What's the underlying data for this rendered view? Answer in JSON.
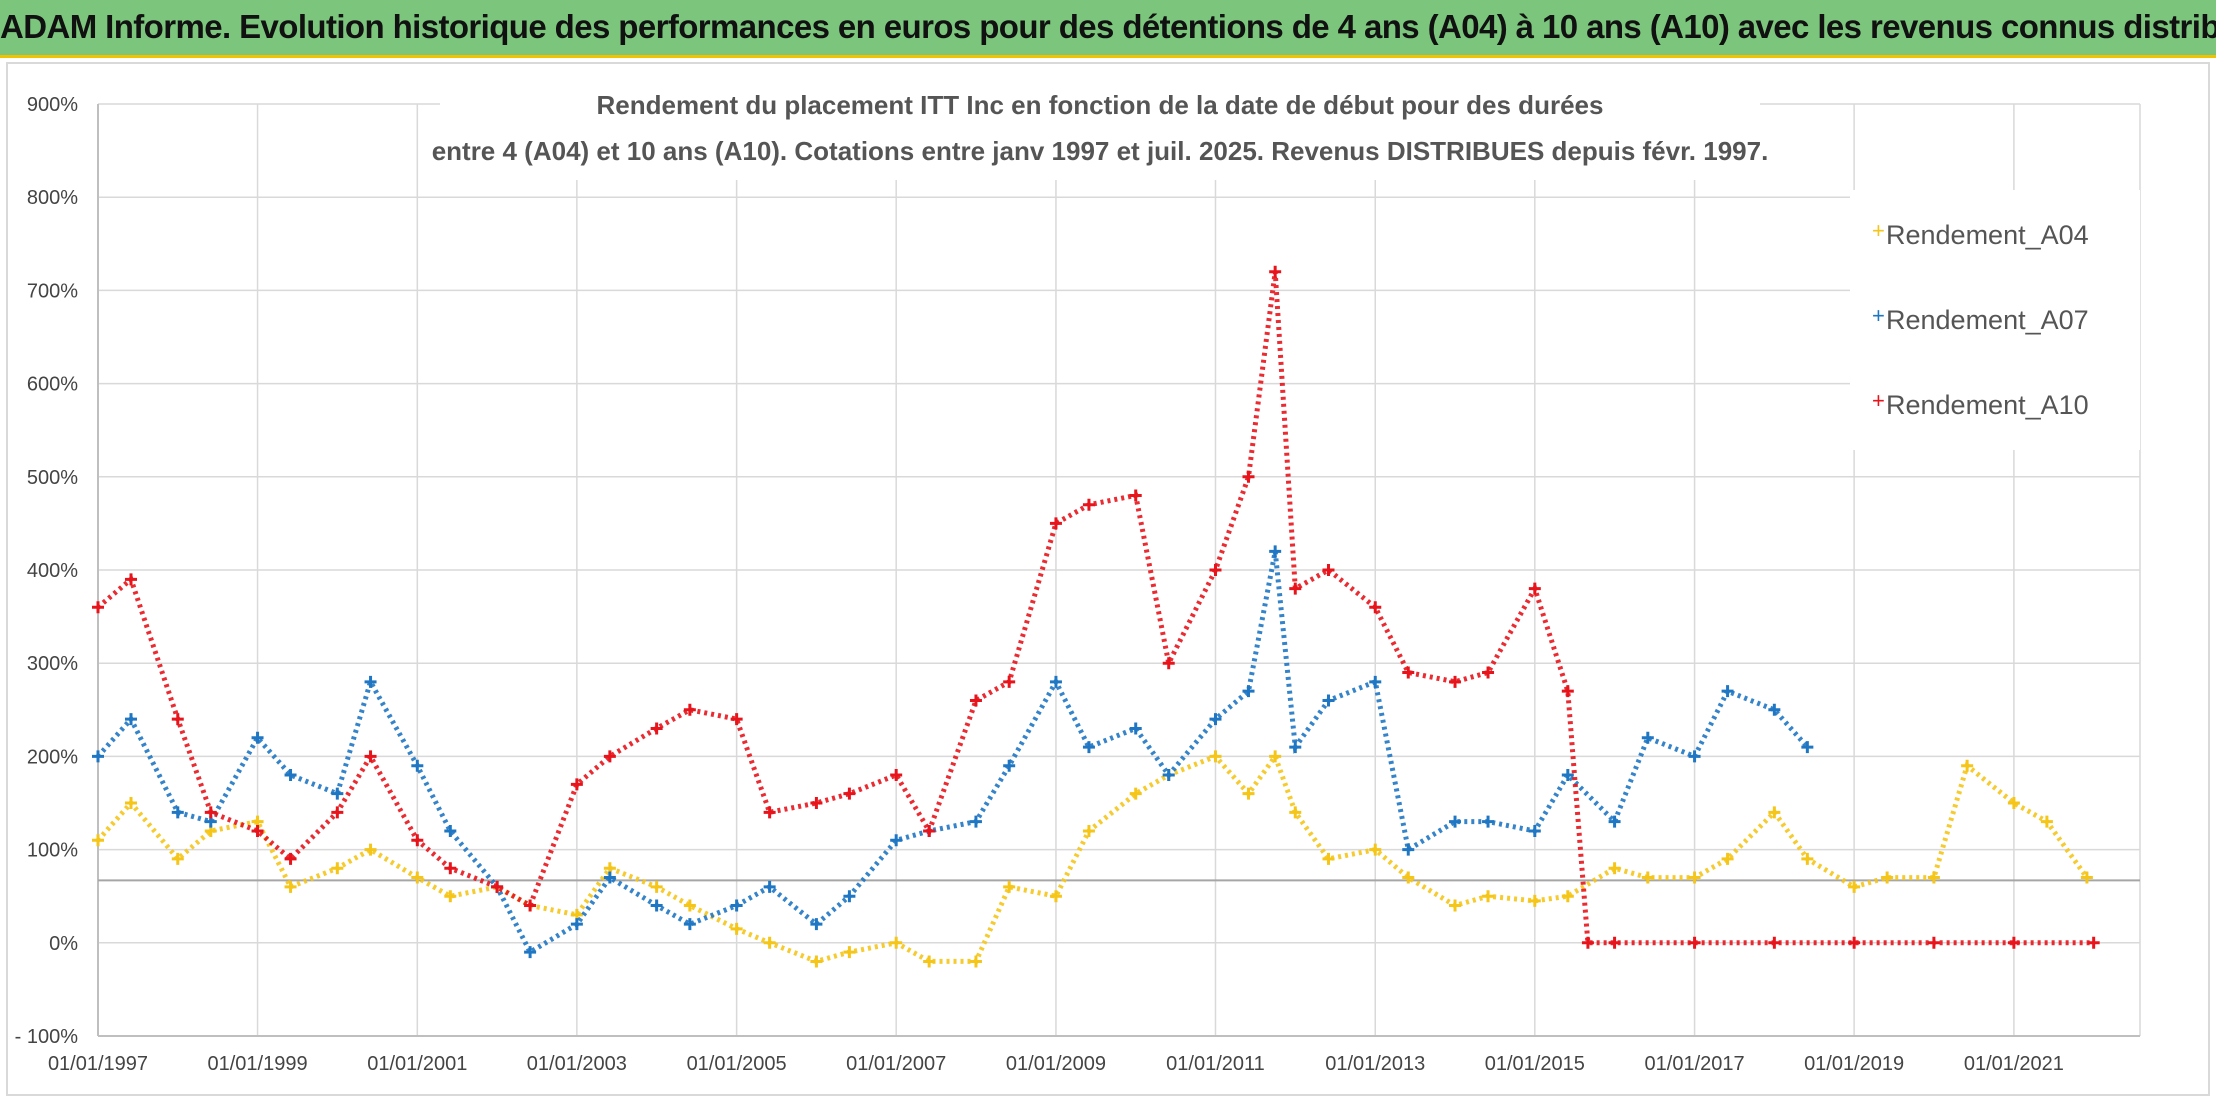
{
  "banner": {
    "title": "ADAM Informe. Evolution historique des performances en euros pour des détentions de 4 ans (A04) à 10 ans (A10) avec les revenus connus distribués"
  },
  "chart_data": {
    "type": "scatter",
    "title_line1": "Rendement du placement ITT Inc en fonction de la date de début pour des durées",
    "title_line2": "entre 4 (A04) et 10 ans (A10). Cotations entre janv 1997 et juil. 2025. Revenus DISTRIBUES depuis févr. 1997.",
    "xlabel": "",
    "ylabel": "",
    "x_range": [
      "01/01/1997",
      "01/08/2022"
    ],
    "x_ticks": [
      "01/01/1997",
      "01/01/1999",
      "01/01/2001",
      "01/01/2003",
      "01/01/2005",
      "01/01/2007",
      "01/01/2009",
      "01/01/2011",
      "01/01/2013",
      "01/01/2015",
      "01/01/2017",
      "01/01/2019",
      "01/01/2021"
    ],
    "ylim": [
      -100,
      900
    ],
    "y_ticks": [
      "- 100%",
      "0%",
      "100%",
      "200%",
      "300%",
      "400%",
      "500%",
      "600%",
      "700%",
      "800%",
      "900%"
    ],
    "reference_line_y": 67,
    "grid": true,
    "legend_position": "top-right",
    "marker": "+",
    "series": [
      {
        "name": "Rendement_A04",
        "color": "#f5c518",
        "x": [
          "1997-01",
          "1997-06",
          "1998-01",
          "1998-06",
          "1999-01",
          "1999-06",
          "2000-01",
          "2000-06",
          "2001-01",
          "2001-06",
          "2002-01",
          "2002-06",
          "2003-01",
          "2003-06",
          "2004-01",
          "2004-06",
          "2005-01",
          "2005-06",
          "2006-01",
          "2006-06",
          "2007-01",
          "2007-06",
          "2008-01",
          "2008-06",
          "2009-01",
          "2009-06",
          "2010-01",
          "2010-06",
          "2011-01",
          "2011-06",
          "2011-10",
          "2012-01",
          "2012-06",
          "2013-01",
          "2013-06",
          "2014-01",
          "2014-06",
          "2015-01",
          "2015-06",
          "2016-01",
          "2016-06",
          "2017-01",
          "2017-06",
          "2018-01",
          "2018-06",
          "2019-01",
          "2019-06",
          "2020-01",
          "2020-06",
          "2021-01",
          "2021-06",
          "2021-12"
        ],
        "y": [
          110,
          150,
          90,
          120,
          130,
          60,
          80,
          100,
          70,
          50,
          60,
          40,
          30,
          80,
          60,
          40,
          15,
          0,
          -20,
          -10,
          0,
          -20,
          -20,
          60,
          50,
          120,
          160,
          180,
          200,
          160,
          200,
          140,
          90,
          100,
          70,
          40,
          50,
          45,
          50,
          80,
          70,
          70,
          90,
          140,
          90,
          60,
          70,
          70,
          190,
          150,
          130,
          70
        ]
      },
      {
        "name": "Rendement_A07",
        "color": "#1f77c4",
        "x": [
          "1997-01",
          "1997-06",
          "1998-01",
          "1998-06",
          "1999-01",
          "1999-06",
          "2000-01",
          "2000-06",
          "2001-01",
          "2001-06",
          "2002-01",
          "2002-06",
          "2003-01",
          "2003-06",
          "2004-01",
          "2004-06",
          "2005-01",
          "2005-06",
          "2006-01",
          "2006-06",
          "2007-01",
          "2007-06",
          "2008-01",
          "2008-06",
          "2009-01",
          "2009-06",
          "2010-01",
          "2010-06",
          "2011-01",
          "2011-06",
          "2011-10",
          "2012-01",
          "2012-06",
          "2013-01",
          "2013-06",
          "2014-01",
          "2014-06",
          "2015-01",
          "2015-06",
          "2016-01",
          "2016-06",
          "2017-01",
          "2017-06",
          "2018-01",
          "2018-06"
        ],
        "y": [
          200,
          240,
          140,
          130,
          220,
          180,
          160,
          280,
          190,
          120,
          60,
          -10,
          20,
          70,
          40,
          20,
          40,
          60,
          20,
          50,
          110,
          120,
          130,
          190,
          280,
          210,
          230,
          180,
          240,
          270,
          420,
          210,
          260,
          280,
          100,
          130,
          130,
          120,
          180,
          130,
          220,
          200,
          270,
          250,
          210
        ]
      },
      {
        "name": "Rendement_A10",
        "color": "#e8141b",
        "x": [
          "1997-01",
          "1997-06",
          "1998-01",
          "1998-06",
          "1999-01",
          "1999-06",
          "2000-01",
          "2000-06",
          "2001-01",
          "2001-06",
          "2002-01",
          "2002-06",
          "2003-01",
          "2003-06",
          "2004-01",
          "2004-06",
          "2005-01",
          "2005-06",
          "2006-01",
          "2006-06",
          "2007-01",
          "2007-06",
          "2008-01",
          "2008-06",
          "2009-01",
          "2009-06",
          "2010-01",
          "2010-06",
          "2011-01",
          "2011-06",
          "2011-10",
          "2012-01",
          "2012-06",
          "2013-01",
          "2013-06",
          "2014-01",
          "2014-06",
          "2015-01",
          "2015-06",
          "2015-09",
          "2016-01",
          "2017-01",
          "2018-01",
          "2019-01",
          "2020-01",
          "2021-01",
          "2022-01"
        ],
        "y": [
          360,
          390,
          240,
          140,
          120,
          90,
          140,
          200,
          110,
          80,
          60,
          40,
          170,
          200,
          230,
          250,
          240,
          140,
          150,
          160,
          180,
          120,
          260,
          280,
          450,
          470,
          480,
          300,
          400,
          500,
          720,
          380,
          400,
          360,
          290,
          280,
          290,
          380,
          270,
          0,
          0,
          0,
          0,
          0,
          0,
          0,
          0
        ]
      }
    ]
  }
}
